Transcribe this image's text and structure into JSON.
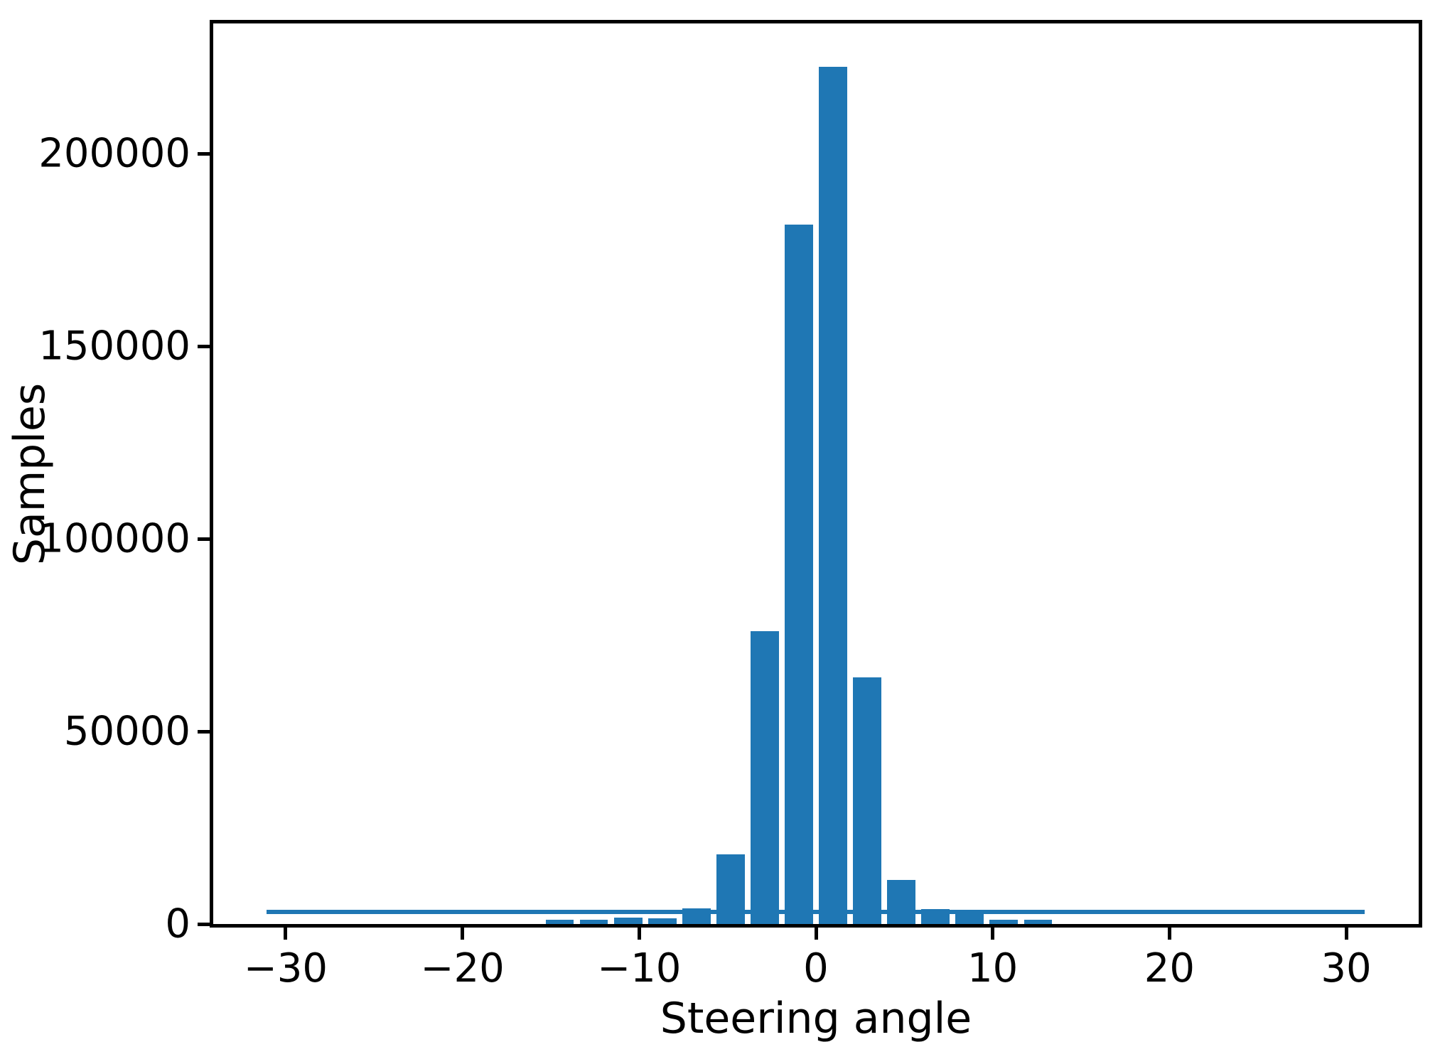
{
  "figure": {
    "background": "#ffffff",
    "bar_color": "#1f77b4",
    "axis_color": "#000000",
    "text_color": "#000000"
  },
  "chart_data": {
    "type": "bar",
    "subtype": "histogram",
    "title": "",
    "xlabel": "Steering angle",
    "ylabel": "Samples",
    "grid": false,
    "legend": "none",
    "xlim": [
      -34.1,
      34.1
    ],
    "ylim": [
      0,
      233800
    ],
    "bin_width": 1.933,
    "bar_width_units": 1.6,
    "bins": [
      {
        "center": -28.03,
        "value": 0
      },
      {
        "center": -26.1,
        "value": 0
      },
      {
        "center": -24.17,
        "value": 0
      },
      {
        "center": -22.23,
        "value": 0
      },
      {
        "center": -20.3,
        "value": 0
      },
      {
        "center": -18.37,
        "value": 0
      },
      {
        "center": -16.43,
        "value": 0
      },
      {
        "center": -14.5,
        "value": 1100
      },
      {
        "center": -12.57,
        "value": 1100
      },
      {
        "center": -10.63,
        "value": 1700
      },
      {
        "center": -8.7,
        "value": 1500
      },
      {
        "center": -6.77,
        "value": 4100
      },
      {
        "center": -4.83,
        "value": 18000
      },
      {
        "center": -2.9,
        "value": 76000
      },
      {
        "center": -0.97,
        "value": 181500
      },
      {
        "center": 0.97,
        "value": 222600
      },
      {
        "center": 2.9,
        "value": 64000
      },
      {
        "center": 4.83,
        "value": 11500
      },
      {
        "center": 6.77,
        "value": 3900
      },
      {
        "center": 8.7,
        "value": 2700
      },
      {
        "center": 10.63,
        "value": 1100
      },
      {
        "center": 12.57,
        "value": 1100
      },
      {
        "center": 14.5,
        "value": 0
      },
      {
        "center": 16.43,
        "value": 0
      },
      {
        "center": 18.37,
        "value": 0
      },
      {
        "center": 20.3,
        "value": 0
      },
      {
        "center": 22.23,
        "value": 0
      },
      {
        "center": 24.17,
        "value": 0
      },
      {
        "center": 26.1,
        "value": 0
      },
      {
        "center": 28.03,
        "value": 0
      }
    ],
    "balance_line": {
      "x_start": -31.1,
      "x_end": 31.05,
      "y": 3200
    },
    "xticks": [
      {
        "v": -30,
        "label": "−30"
      },
      {
        "v": -20,
        "label": "−20"
      },
      {
        "v": -10,
        "label": "−10"
      },
      {
        "v": 0,
        "label": "0"
      },
      {
        "v": 10,
        "label": "10"
      },
      {
        "v": 20,
        "label": "20"
      },
      {
        "v": 30,
        "label": "30"
      }
    ],
    "yticks": [
      {
        "v": 0,
        "label": "0"
      },
      {
        "v": 50000,
        "label": "50000"
      },
      {
        "v": 100000,
        "label": "100000"
      },
      {
        "v": 150000,
        "label": "150000"
      },
      {
        "v": 200000,
        "label": "200000"
      }
    ]
  }
}
